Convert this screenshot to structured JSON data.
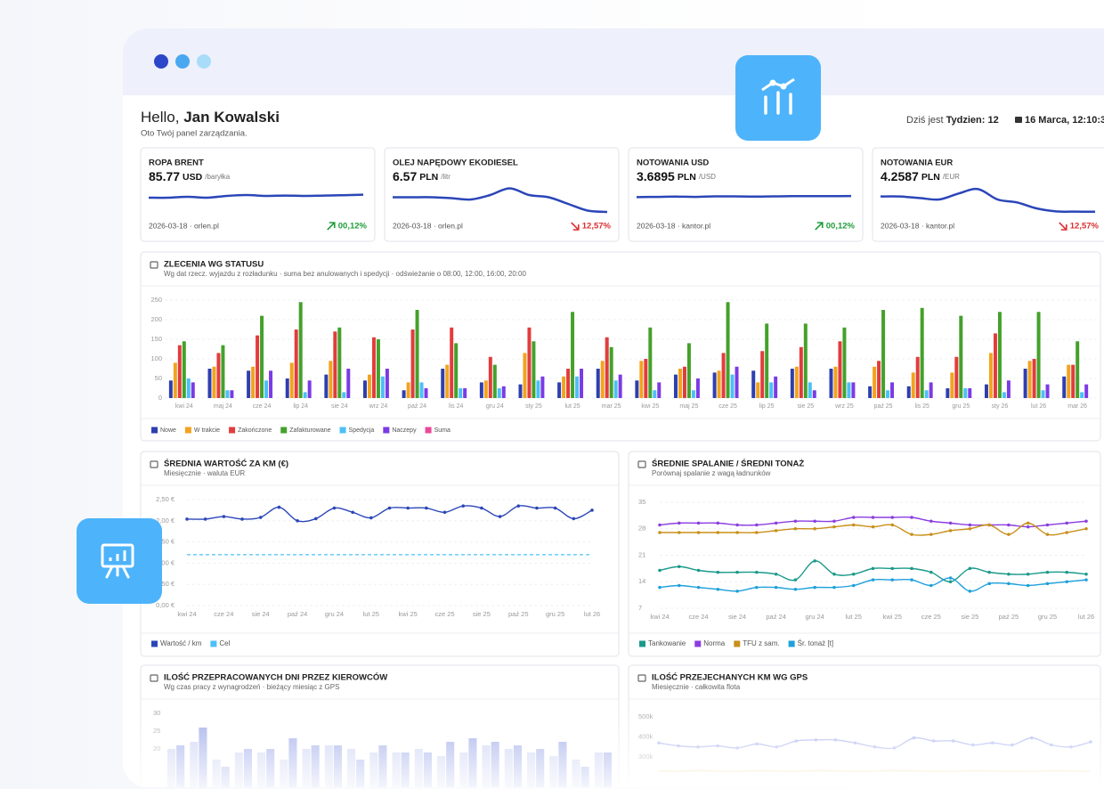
{
  "header": {
    "greeting": "Hello,",
    "name": "Jan Kowalski",
    "subtitle": "Oto Twój panel zarządzania.",
    "date_prefix": "Dziś jest",
    "week": "Tydzien: 12",
    "date": "16 Marca, 12:10:3"
  },
  "tickers": [
    {
      "title": "ROPA BRENT",
      "value": 85.77,
      "unit": "USD",
      "per": "/baryłka",
      "source": "2026-03-18 · orlen.pl",
      "change": "00,12%",
      "direction": "up",
      "values": [
        85.6,
        85.6,
        85.65,
        85.6,
        85.7,
        85.75,
        85.7,
        85.72,
        85.7,
        85.72,
        85.74,
        85.77
      ],
      "ylim": [
        84.5,
        86.5
      ]
    },
    {
      "title": "OLEJ NAPĘDOWY EKODIESEL",
      "value": 6.57,
      "unit": "PLN",
      "per": "/litr",
      "source": "2026-03-18 · orlen.pl",
      "change": "12,57%",
      "direction": "down",
      "values": [
        6.9,
        6.9,
        6.9,
        6.88,
        6.85,
        6.95,
        7.1,
        6.95,
        6.9,
        6.75,
        6.6,
        6.57
      ],
      "ylim": [
        6.45,
        7.25
      ]
    },
    {
      "title": "NOTOWANIA USD",
      "value": 3.6895,
      "unit": "PLN",
      "per": "/USD",
      "source": "2026-03-18 · kantor.pl",
      "change": "00,12%",
      "direction": "up",
      "values": [
        3.685,
        3.686,
        3.687,
        3.686,
        3.688,
        3.688,
        3.687,
        3.688,
        3.689,
        3.689,
        3.689,
        3.6895
      ],
      "ylim": [
        3.6,
        3.75
      ]
    },
    {
      "title": "NOTOWANIA EUR",
      "value": 4.2587,
      "unit": "PLN",
      "per": "/EUR",
      "source": "2026-03-18 · kantor.pl",
      "change": "12,57%",
      "direction": "down",
      "values": [
        4.31,
        4.31,
        4.305,
        4.3,
        4.32,
        4.335,
        4.3,
        4.29,
        4.27,
        4.26,
        4.259,
        4.2587
      ],
      "ylim": [
        4.24,
        4.36
      ]
    }
  ],
  "charts": [
    {
      "type": "bar",
      "title": "ZLECENIA WG STATUSU",
      "subtitle": "Wg dat rzecz. wyjazdu z rozładunku · suma bez anulowanych i spedycji · odświeżanie o 08:00, 12:00, 16:00, 20:00",
      "categories": [
        "kwi 24",
        "maj 24",
        "cze 24",
        "lip 24",
        "sie 24",
        "wrz 24",
        "paź 24",
        "lis 24",
        "gru 24",
        "sty 25",
        "lut 25",
        "mar 25",
        "kwi 25",
        "maj 25",
        "cze 25",
        "lip 25",
        "sie 25",
        "wrz 25",
        "paź 25",
        "lis 25",
        "gru 25",
        "sty 26",
        "lut 26",
        "mar 26"
      ],
      "series": [
        {
          "name": "Nowe",
          "color": "#2e3fae",
          "values": [
            45,
            75,
            70,
            50,
            60,
            45,
            20,
            75,
            40,
            35,
            40,
            75,
            45,
            60,
            65,
            70,
            75,
            75,
            30,
            30,
            25,
            35,
            75,
            55
          ]
        },
        {
          "name": "W trakcie",
          "color": "#f2a31f",
          "values": [
            90,
            80,
            80,
            90,
            95,
            60,
            40,
            85,
            45,
            115,
            55,
            95,
            95,
            75,
            70,
            40,
            80,
            80,
            80,
            65,
            65,
            115,
            95,
            85
          ]
        },
        {
          "name": "Zakończone",
          "color": "#e23c3c",
          "values": [
            135,
            115,
            160,
            175,
            170,
            155,
            175,
            180,
            105,
            180,
            75,
            155,
            100,
            80,
            115,
            120,
            130,
            145,
            95,
            105,
            105,
            165,
            100,
            85
          ]
        },
        {
          "name": "Zafakturowane",
          "color": "#44a12b",
          "values": [
            145,
            135,
            210,
            245,
            180,
            150,
            225,
            140,
            85,
            145,
            220,
            130,
            180,
            140,
            245,
            190,
            190,
            180,
            225,
            230,
            210,
            220,
            220,
            145
          ]
        },
        {
          "name": "Spedycja",
          "color": "#4cc0f5",
          "values": [
            50,
            20,
            45,
            15,
            15,
            55,
            40,
            25,
            25,
            45,
            55,
            45,
            20,
            20,
            60,
            40,
            40,
            40,
            20,
            20,
            25,
            15,
            20,
            15
          ]
        },
        {
          "name": "Naczepy",
          "color": "#7b3be6",
          "values": [
            40,
            20,
            70,
            45,
            75,
            75,
            25,
            25,
            30,
            55,
            75,
            60,
            40,
            50,
            80,
            55,
            20,
            40,
            40,
            40,
            25,
            45,
            35,
            35
          ]
        },
        {
          "name": "Suma",
          "color": "#ec4899",
          "values": [
            null,
            null,
            null,
            null,
            null,
            null,
            null,
            null,
            null,
            null,
            null,
            null,
            null,
            null,
            null,
            null,
            null,
            null,
            null,
            null,
            null,
            null,
            null,
            null
          ]
        }
      ],
      "ylim": [
        0,
        250
      ],
      "yticks": [
        0,
        50,
        100,
        150,
        200,
        250
      ],
      "grid": true
    },
    {
      "type": "line",
      "title": "ŚREDNIA WARTOŚĆ ZA KM (€)",
      "subtitle": "Miesięcznie · waluta EUR",
      "categories": [
        "kwi 24",
        null,
        "cze 24",
        null,
        "sie 24",
        null,
        "paź 24",
        null,
        "gru 24",
        null,
        "lut 25",
        null,
        "kwi 25",
        null,
        "cze 25",
        null,
        "sie 25",
        null,
        "paź 25",
        null,
        "gru 25",
        null,
        "lut 26"
      ],
      "series": [
        {
          "name": "Wartość / km",
          "color": "#2b46b8",
          "markers": true,
          "values": [
            2.04,
            2.04,
            2.1,
            2.04,
            2.08,
            2.32,
            2.0,
            2.05,
            2.3,
            2.2,
            2.07,
            2.3,
            2.3,
            2.3,
            2.2,
            2.35,
            2.3,
            2.1,
            2.35,
            2.3,
            2.3,
            2.05,
            2.25
          ]
        },
        {
          "name": "Cel",
          "color": "#4cc0f5",
          "dashed": true,
          "values": [
            1.2,
            1.2,
            1.2,
            1.2,
            1.2,
            1.2,
            1.2,
            1.2,
            1.2,
            1.2,
            1.2,
            1.2,
            1.2,
            1.2,
            1.2,
            1.2,
            1.2,
            1.2,
            1.2,
            1.2,
            1.2,
            1.2,
            1.2
          ]
        }
      ],
      "ylim": [
        0,
        2.5
      ],
      "yticks": [
        {
          "value": 0,
          "label": "0,00 €"
        },
        {
          "value": 0.5,
          "label": "0,50 €"
        },
        {
          "value": 1,
          "label": "1,00 €"
        },
        {
          "value": 1.5,
          "label": "1,50 €"
        },
        {
          "value": 2,
          "label": "2,00 €"
        },
        {
          "value": 2.5,
          "label": "2,50 €"
        }
      ],
      "grid": true
    },
    {
      "type": "line",
      "title": "ŚREDNIE SPALANIE / ŚREDNI TONAŻ",
      "subtitle": "Porównaj  spalanie z wagą ładnunków",
      "categories": [
        "kwi 24",
        null,
        "cze 24",
        null,
        "sie 24",
        null,
        "paź 24",
        null,
        "gru 24",
        null,
        "lut 25",
        null,
        "kwi 25",
        null,
        "cze 25",
        null,
        "sie 25",
        null,
        "paź 25",
        null,
        "gru 25",
        null,
        "lut 26"
      ],
      "series": [
        {
          "name": "Tankowanie",
          "color": "#1a9a8a",
          "markers": true,
          "values": [
            17,
            18,
            17,
            16.5,
            16.5,
            16.5,
            16,
            14.5,
            19.5,
            16,
            16,
            17.5,
            17.5,
            17.5,
            16.5,
            14,
            17.5,
            16.5,
            16,
            16,
            16.5,
            16.5,
            16
          ]
        },
        {
          "name": "Norma",
          "color": "#8b3ee0",
          "markers": true,
          "values": [
            29,
            29.5,
            29.5,
            29.5,
            29,
            29,
            29.5,
            30,
            30,
            30,
            31,
            31,
            31,
            31,
            30,
            29.5,
            29,
            29,
            29,
            28.5,
            29,
            29.5,
            30
          ]
        },
        {
          "name": "TFU z sam.",
          "color": "#c8901a",
          "markers": true,
          "values": [
            27,
            27,
            27,
            27,
            27,
            27,
            27.5,
            28,
            28,
            28.5,
            29,
            28.5,
            29,
            26.5,
            26.5,
            27.5,
            28,
            29,
            26.5,
            29.5,
            26.5,
            27,
            28
          ]
        },
        {
          "name": "Śr. tonaż [t]",
          "color": "#1ea0dc",
          "markers": true,
          "values": [
            12.5,
            13,
            12.5,
            12,
            11.5,
            12.5,
            12.5,
            12,
            12.5,
            12.5,
            13,
            14.5,
            14.5,
            14.5,
            13,
            15,
            11.5,
            13.5,
            13.5,
            13,
            13.5,
            14,
            14.5
          ]
        }
      ],
      "ylim": [
        7,
        35
      ],
      "yticks": [
        7,
        14,
        21,
        28,
        35
      ],
      "grid": true
    },
    {
      "type": "bar",
      "title": "ILOŚĆ PRZEPRACOWANYCH DNI PRZEZ KIEROWCÓW",
      "subtitle": "Wg czas pracy z wynagrodzeń · bieżący miesiąc z GPS",
      "categories": [
        null,
        null,
        null,
        null,
        null,
        null,
        null,
        null,
        null,
        null,
        null,
        null,
        null,
        null,
        null,
        null,
        null,
        null,
        null,
        null
      ],
      "series": [
        {
          "color": "#c9d0f2",
          "values": [
            20,
            22,
            17,
            19,
            19,
            17,
            20,
            21,
            20,
            19,
            19,
            20,
            18,
            19,
            21,
            20,
            19,
            18,
            17,
            19
          ]
        },
        {
          "color": "#9ba7e8",
          "values": [
            21,
            26,
            15,
            20,
            20,
            23,
            21,
            21,
            17,
            21,
            19,
            19,
            22,
            23,
            22,
            21,
            20,
            22,
            15,
            19
          ]
        }
      ],
      "ylim": [
        0,
        30
      ],
      "yticks": [
        20,
        25,
        30
      ],
      "grid": false
    },
    {
      "type": "line",
      "title": "ILOŚĆ PRZEJECHANYCH KM WG GPS",
      "subtitle": "Miesięcznie · całkowita flota",
      "categories": [
        null,
        null,
        null,
        null,
        null,
        null,
        null,
        null,
        null,
        null,
        null,
        null,
        null,
        null,
        null,
        null,
        null,
        null,
        null,
        null,
        null,
        null,
        null
      ],
      "series": [
        {
          "color": "#a9b3ee",
          "markers": true,
          "values": [
            370000,
            355000,
            350000,
            355000,
            345000,
            365000,
            350000,
            380000,
            385000,
            385000,
            370000,
            350000,
            345000,
            395000,
            380000,
            380000,
            360000,
            370000,
            360000,
            395000,
            360000,
            350000,
            375000
          ]
        },
        {
          "color": "#f3dca0",
          "values": [
            230000,
            228000,
            232000,
            229000,
            227000,
            231000,
            229000,
            228000,
            232000,
            230000,
            228000,
            229000,
            232000,
            230000,
            228000,
            227000,
            231000,
            229000,
            228000,
            227000,
            231000,
            229000,
            228000
          ]
        }
      ],
      "ylim": [
        0,
        500000
      ],
      "yticks": [
        {
          "value": 300000,
          "label": "300k"
        },
        {
          "value": 400000,
          "label": "400k"
        },
        {
          "value": 500000,
          "label": "500k"
        }
      ],
      "grid": false
    }
  ]
}
